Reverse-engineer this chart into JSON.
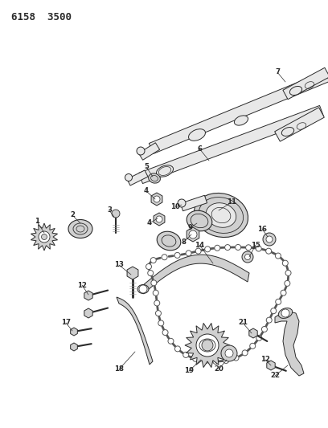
{
  "title": "6158  3500",
  "bg_color": "#ffffff",
  "line_color": "#2a2a2a",
  "fig_width": 4.08,
  "fig_height": 5.33,
  "dpi": 100,
  "shaft_color": "#e8e8e8",
  "shaft_dark": "#888888",
  "part_gray": "#d0d0d0"
}
